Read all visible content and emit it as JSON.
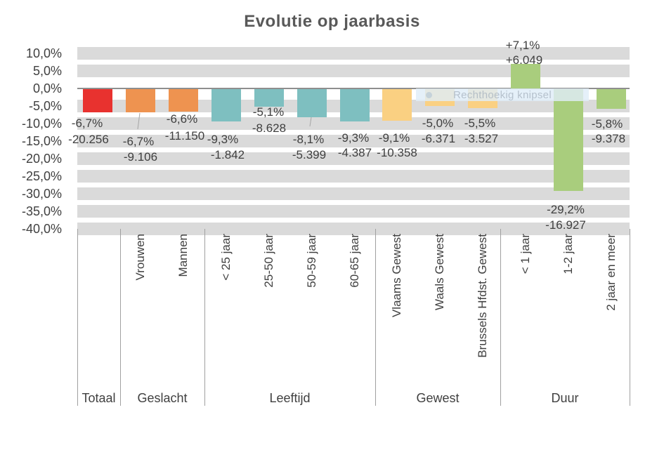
{
  "title": "Evolutie op jaarbasis",
  "snip_overlay": {
    "label": "Rechthoekig knipsel",
    "icon": "dot-icon"
  },
  "chart_data": {
    "type": "bar",
    "title": "Evolutie op jaarbasis",
    "xlabel": "",
    "ylabel": "",
    "ylim": [
      -40,
      10
    ],
    "ytick_step": 5,
    "ytick_labels": [
      "10,0%",
      "5,0%",
      "0,0%",
      "-5,0%",
      "-10,0%",
      "-15,0%",
      "-20,0%",
      "-25,0%",
      "-30,0%",
      "-35,0%",
      "-40,0%"
    ],
    "grid": "horizontal-gray-bands",
    "legend": "none",
    "colors": {
      "grid_band": "#dadada",
      "zero_axis_line": "#8e8e8e",
      "separator_line": "#a0a0a0",
      "text": "#404040",
      "title_text": "#595959"
    },
    "groups": [
      {
        "label": "Totaal",
        "color": "#e8322f",
        "items": [
          {
            "category": "",
            "pct": -6.7,
            "pct_label": "-6,7%",
            "abs_label": "-20.256"
          }
        ]
      },
      {
        "label": "Geslacht",
        "color": "#ee9350",
        "items": [
          {
            "category": "Vrouwen",
            "pct": -6.7,
            "pct_label": "-6,7%",
            "abs_label": "-9.106"
          },
          {
            "category": "Mannen",
            "pct": -6.6,
            "pct_label": "-6,6%",
            "abs_label": "-11.150"
          }
        ]
      },
      {
        "label": "Leeftijd",
        "color": "#7ebfc0",
        "items": [
          {
            "category": "< 25 jaar",
            "pct": -9.3,
            "pct_label": "-9,3%",
            "abs_label": "-1.842"
          },
          {
            "category": "25-50 jaar",
            "pct": -5.1,
            "pct_label": "-5,1%",
            "abs_label": "-8.628"
          },
          {
            "category": "50-59 jaar",
            "pct": -8.1,
            "pct_label": "-8,1%",
            "abs_label": "-5.399"
          },
          {
            "category": "60-65 jaar",
            "pct": -9.3,
            "pct_label": "-9,3%",
            "abs_label": "-4.387"
          }
        ]
      },
      {
        "label": "Gewest",
        "color": "#fad082",
        "items": [
          {
            "category": "Vlaams Gewest",
            "pct": -9.1,
            "pct_label": "-9,1%",
            "abs_label": "-10.358"
          },
          {
            "category": "Waals Gewest",
            "pct": -5.0,
            "pct_label": "-5,0%",
            "abs_label": "-6.371"
          },
          {
            "category": "Brussels Hfdst. Gewest",
            "pct": -5.5,
            "pct_label": "-5,5%",
            "abs_label": "-3.527"
          }
        ]
      },
      {
        "label": "Duur",
        "color": "#a9cd7d",
        "items": [
          {
            "category": "< 1 jaar",
            "pct": 7.1,
            "pct_label": "+7,1%",
            "abs_label": "+6.049"
          },
          {
            "category": "1-2 jaar",
            "pct": -29.2,
            "pct_label": "-29,2%",
            "abs_label": "-16.927"
          },
          {
            "category": "2 jaar en meer",
            "pct": -5.8,
            "pct_label": "-5,8%",
            "abs_label": "-9.378"
          }
        ]
      }
    ]
  }
}
